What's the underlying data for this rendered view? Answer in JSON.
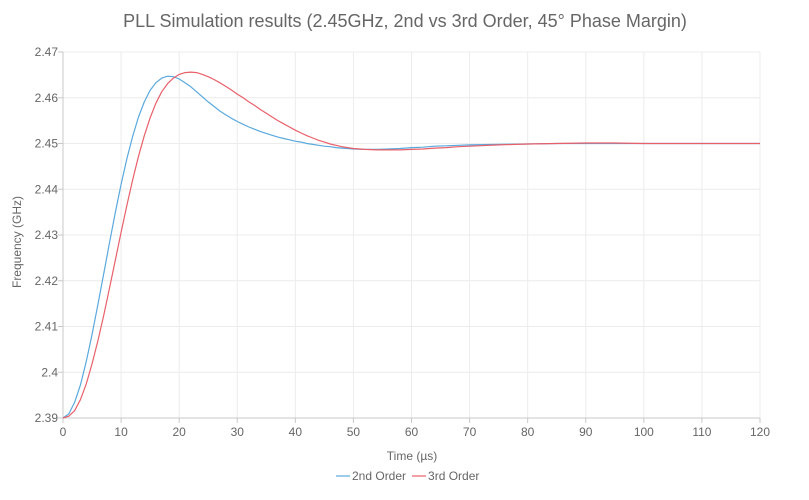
{
  "chart_data": {
    "type": "line",
    "title": "PLL Simulation results (2.45GHz, 2nd vs 3rd Order, 45° Phase Margin)",
    "xlabel": "Time (µs)",
    "ylabel": "Frequency (GHz)",
    "xlim": [
      0,
      120
    ],
    "ylim": [
      2.39,
      2.47
    ],
    "x_ticks": [
      "0",
      "10",
      "20",
      "30",
      "40",
      "50",
      "60",
      "70",
      "80",
      "90",
      "100",
      "110",
      "120"
    ],
    "y_ticks": [
      "2.39",
      "2.4",
      "2.41",
      "2.42",
      "2.43",
      "2.44",
      "2.45",
      "2.46",
      "2.47"
    ],
    "grid": true,
    "legend_position": "bottom",
    "series": [
      {
        "name": "2nd Order",
        "color": "#5aa9dd",
        "x": [
          0,
          1,
          2,
          3,
          4,
          5,
          6,
          7,
          8,
          9,
          10,
          11,
          12,
          13,
          14,
          15,
          16,
          17,
          18,
          19,
          20,
          21,
          22,
          23,
          24,
          25,
          26,
          27,
          28,
          29,
          30,
          31,
          32,
          33,
          34,
          35,
          36,
          37,
          38,
          39,
          40,
          41,
          42,
          43,
          44,
          45,
          46,
          47,
          48,
          49,
          50,
          52,
          54,
          56,
          58,
          60,
          62,
          64,
          66,
          68,
          70,
          75,
          80,
          85,
          90,
          95,
          100,
          105,
          110,
          115,
          120
        ],
        "y": [
          2.39,
          2.3909,
          2.3934,
          2.3972,
          2.4023,
          2.4082,
          2.4147,
          2.4215,
          2.4283,
          2.4349,
          2.4411,
          2.4467,
          2.4516,
          2.4558,
          2.4591,
          2.4616,
          2.4633,
          2.4643,
          2.4647,
          2.4646,
          2.4641,
          2.4633,
          2.4624,
          2.4613,
          2.4602,
          2.4591,
          2.4581,
          2.4571,
          2.4563,
          2.4555,
          2.4548,
          2.4542,
          2.4536,
          2.4531,
          2.4526,
          2.4522,
          2.4518,
          2.4514,
          2.4511,
          2.4508,
          2.4505,
          2.4503,
          2.45,
          2.4498,
          2.4496,
          2.4494,
          2.4493,
          2.4491,
          2.449,
          2.4489,
          2.4488,
          2.4487,
          2.4487,
          2.4488,
          2.4489,
          2.4491,
          2.4492,
          2.4494,
          2.4495,
          2.4496,
          2.4497,
          2.4498,
          2.4499,
          2.45,
          2.45,
          2.45,
          2.45,
          2.45,
          2.45,
          2.45,
          2.45
        ]
      },
      {
        "name": "3rd Order",
        "color": "#e8606a",
        "x": [
          0,
          1,
          2,
          3,
          4,
          5,
          6,
          7,
          8,
          9,
          10,
          11,
          12,
          13,
          14,
          15,
          16,
          17,
          18,
          19,
          20,
          21,
          22,
          23,
          24,
          25,
          26,
          27,
          28,
          29,
          30,
          31,
          32,
          33,
          34,
          35,
          36,
          37,
          38,
          39,
          40,
          41,
          42,
          43,
          44,
          45,
          46,
          47,
          48,
          49,
          50,
          52,
          54,
          56,
          58,
          60,
          62,
          64,
          66,
          68,
          70,
          75,
          80,
          85,
          90,
          95,
          100,
          105,
          110,
          115,
          120
        ],
        "y": [
          2.39,
          2.3904,
          2.3916,
          2.394,
          2.3974,
          2.4018,
          2.4068,
          2.4124,
          2.4184,
          2.4245,
          2.4306,
          2.4365,
          2.4421,
          2.4472,
          2.4517,
          2.4556,
          2.4588,
          2.4613,
          2.4631,
          2.4643,
          2.4651,
          2.4655,
          2.4656,
          2.4655,
          2.4651,
          2.4646,
          2.464,
          2.4633,
          2.4625,
          2.4617,
          2.4608,
          2.46,
          2.4591,
          2.4583,
          2.4574,
          2.4566,
          2.4558,
          2.455,
          2.4543,
          2.4536,
          2.4529,
          2.4523,
          2.4517,
          2.4512,
          2.4507,
          2.4503,
          2.4499,
          2.4496,
          2.4493,
          2.4491,
          2.4489,
          2.4487,
          2.4486,
          2.4486,
          2.4486,
          2.4487,
          2.4488,
          2.449,
          2.4491,
          2.4493,
          2.4494,
          2.4497,
          2.4499,
          2.45,
          2.4501,
          2.4501,
          2.45,
          2.45,
          2.45,
          2.45,
          2.45
        ]
      }
    ]
  }
}
